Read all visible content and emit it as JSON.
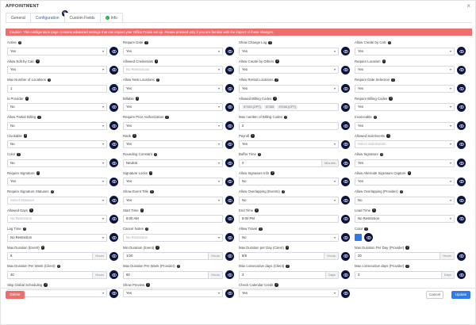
{
  "modal": {
    "title": "APPOINTMENT",
    "close": "×",
    "tabs": [
      "General",
      "Configuration",
      "Custom Fields",
      "Info"
    ],
    "alert": "Caution: This configuration page contains advanced settings that can impact your Office Proxis set up. Please proceed only if you are familiar with the impact of these changes."
  },
  "fields": [
    {
      "label": "Active",
      "value": "Yes",
      "type": "select"
    },
    {
      "label": "Require Date",
      "value": "Yes",
      "type": "select"
    },
    {
      "label": "Show Change Log",
      "value": "Yes",
      "type": "select"
    },
    {
      "label": "Allow Create by Calc",
      "value": "Yes",
      "type": "select"
    },
    {
      "label": "Allow Edit by Calc",
      "value": "Yes",
      "type": "select"
    },
    {
      "label": "Allowed Credentials",
      "value": "No Restrictions",
      "type": "select",
      "placeholder": true
    },
    {
      "label": "Allow Create by Others",
      "value": "Yes",
      "type": "select"
    },
    {
      "label": "Require Location",
      "value": "Yes",
      "type": "select"
    },
    {
      "label": "Max Number of Locations",
      "value": "1",
      "type": "text"
    },
    {
      "label": "Allow New Locations",
      "value": "Yes",
      "type": "select"
    },
    {
      "label": "Allow Rental Locations",
      "value": "Yes",
      "type": "select"
    },
    {
      "label": "Require Date Selection",
      "value": "Yes",
      "type": "select"
    },
    {
      "label": "Is Provider",
      "value": "No",
      "type": "select"
    },
    {
      "label": "Billable",
      "value": "Yes",
      "type": "select"
    },
    {
      "label": "Allowed Billing Codes",
      "value": "",
      "type": "chips",
      "chips": [
        "97153 (CPT)",
        "97155",
        "97156 (CPT)"
      ]
    },
    {
      "label": "Require Billing Codes",
      "value": "Yes",
      "type": "select"
    },
    {
      "label": "Allow Partial Billing",
      "value": "No",
      "type": "select"
    },
    {
      "label": "Require Prior Authorization",
      "value": "Yes",
      "type": "select"
    },
    {
      "label": "Max number of Billing Codes",
      "value": "2",
      "type": "text"
    },
    {
      "label": "Invoiceable",
      "value": "Yes",
      "type": "select"
    },
    {
      "label": "Clockable",
      "value": "No",
      "type": "select"
    },
    {
      "label": "Rank",
      "value": "Yes",
      "type": "select"
    },
    {
      "label": "Payroll",
      "value": "Yes",
      "type": "select"
    },
    {
      "label": "Allowed Sub-Events",
      "value": "Select Sub-Events",
      "type": "select",
      "placeholder": true
    },
    {
      "label": "Color",
      "value": "No",
      "type": "select"
    },
    {
      "label": "Rounding Constant",
      "value": "Neutral",
      "type": "select"
    },
    {
      "label": "Buffer Time",
      "value": "0",
      "type": "text",
      "suffix": "Minutes"
    },
    {
      "label": "Allow Signature",
      "value": "Yes",
      "type": "select"
    },
    {
      "label": "Require Signature",
      "value": "Yes",
      "type": "select"
    },
    {
      "label": "Signature Locks",
      "value": "Yes",
      "type": "select"
    },
    {
      "label": "Allow Signature Info",
      "value": "No",
      "type": "select"
    },
    {
      "label": "Allow Alternate Signature Capture",
      "value": "Yes",
      "type": "select"
    },
    {
      "label": "Require Signature Statuses",
      "value": "Select Statuses",
      "type": "select",
      "placeholder": true
    },
    {
      "label": "Show Event Title",
      "value": "Yes",
      "type": "select"
    },
    {
      "label": "Allow Overlapping (Events)",
      "value": "No",
      "type": "select"
    },
    {
      "label": "Allow Overlapping (Provider)",
      "value": "No",
      "type": "select"
    },
    {
      "label": "Allowed Days",
      "value": "No Restriction",
      "type": "select",
      "placeholder": true
    },
    {
      "label": "Start Time",
      "value": "8:00 AM",
      "type": "time"
    },
    {
      "label": "End Time",
      "value": "8:00 PM",
      "type": "time"
    },
    {
      "label": "Lead Time",
      "value": "No Restriction",
      "type": "select"
    },
    {
      "label": "Lag Time",
      "value": "No Restriction",
      "type": "select"
    },
    {
      "label": "Cancel Notes",
      "value": "No Restriction",
      "type": "select",
      "placeholder": true
    },
    {
      "label": "Allow Travel",
      "value": "No",
      "type": "select"
    },
    {
      "label": "Color",
      "value": "",
      "type": "color"
    },
    {
      "label": "Max Duration (Event)",
      "value": "8",
      "type": "text",
      "suffix": "Hours"
    },
    {
      "label": "Min Duration (Event)",
      "value": "1/20",
      "type": "text",
      "suffix": "Hours"
    },
    {
      "label": "Max Duration per Day (Client)",
      "value": "8/8",
      "type": "text",
      "suffix": "Hours"
    },
    {
      "label": "Max Duration Per Day (Provider)",
      "value": "20",
      "type": "text",
      "suffix": "Hours"
    },
    {
      "label": "Max Duration Per Week (Client)",
      "value": "40",
      "type": "text",
      "suffix": "Hours"
    },
    {
      "label": "Max Duration Per Week (Provider)",
      "value": "60",
      "type": "text",
      "suffix": "Hours"
    },
    {
      "label": "Max consecutive days (Client)",
      "value": "3",
      "type": "text",
      "suffix": "Days"
    },
    {
      "label": "Max consecutive days (Provider)",
      "value": "3",
      "type": "text",
      "suffix": "Days"
    },
    {
      "label": "Skip Global Scheduling",
      "value": "No",
      "type": "select"
    },
    {
      "label": "Show Preview",
      "value": "Yes",
      "type": "select"
    },
    {
      "label": "Check Calendar Credit",
      "value": "Yes",
      "type": "select"
    }
  ],
  "footer": {
    "delete": "Delete",
    "cancel": "Cancel",
    "update": "Update"
  },
  "colors": {
    "navy": "#0b1440",
    "accent": "#2f7bea",
    "danger": "#ee6e6e"
  }
}
